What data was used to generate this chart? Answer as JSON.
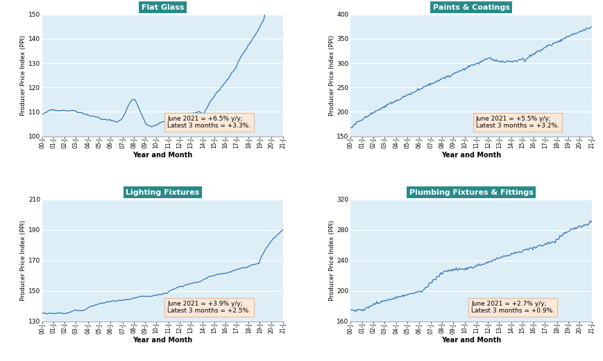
{
  "panels": [
    {
      "title": "Flat Glass",
      "ylabel": "Producer Price Index (PPI)",
      "xlabel": "Year and Month",
      "annotation": "June 2021 = +6.5% y/y;\nLatest 3 months = +3.3%.",
      "ylim": [
        100,
        150
      ],
      "yticks": [
        100,
        110,
        120,
        130,
        140,
        150
      ]
    },
    {
      "title": "Paints & Coatings",
      "ylabel": "Producer Price Index (PPI)",
      "xlabel": "Year and Month",
      "annotation": "June 2021 = +5.5% y/y;\nLatest 3 months = +3.2%.",
      "ylim": [
        150,
        400
      ],
      "yticks": [
        150,
        200,
        250,
        300,
        350,
        400
      ]
    },
    {
      "title": "Lighting Fixtures",
      "ylabel": "Producer Price Index (PPI)",
      "xlabel": "Year and Month",
      "annotation": "June 2021 = +3.9% y/y;\nLatest 3 months = +2.5%.",
      "ylim": [
        130,
        210
      ],
      "yticks": [
        130,
        150,
        170,
        190,
        210
      ]
    },
    {
      "title": "Plumbing Fixtures & Fittings",
      "ylabel": "Producer Price Index (PPI)",
      "xlabel": "Year and Month",
      "annotation": "June 2021 = +2.7% y/y;\nLatest 3 months = +0.9%.",
      "ylim": [
        160,
        320
      ],
      "yticks": [
        160,
        200,
        240,
        280,
        320
      ]
    }
  ],
  "line_color": "#2b6cb0",
  "bg_color": "#ddeef7",
  "title_bg": "#2a8a8a",
  "title_fg": "#ffffff",
  "annot_bg": "#fce8d8",
  "annot_border": "#e8b890",
  "outer_bg": "#ffffff",
  "n_points": 259
}
